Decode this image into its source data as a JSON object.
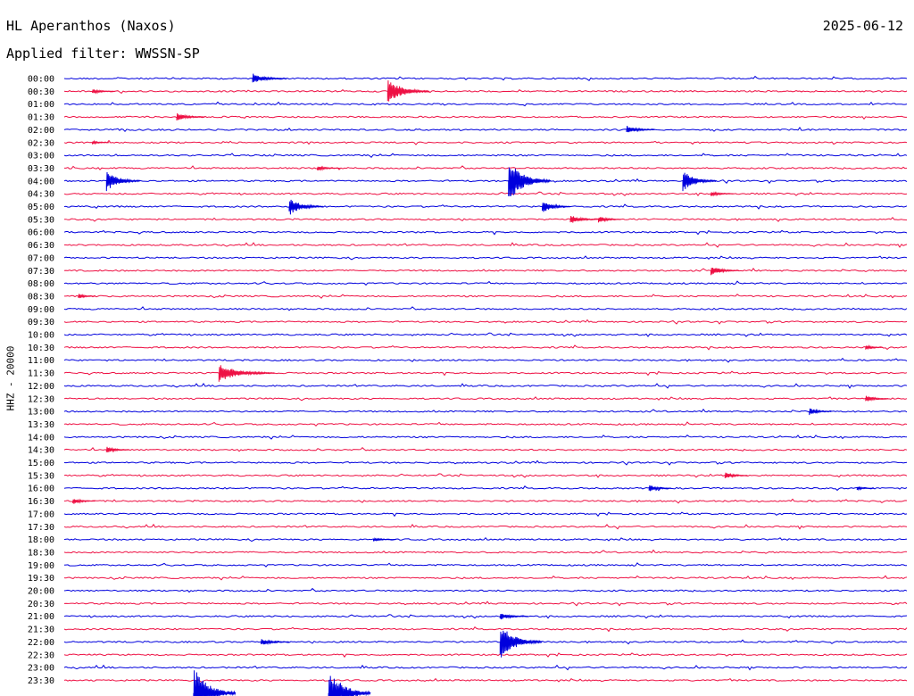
{
  "header": {
    "station": "HL Aperanthos (Naxos)",
    "date": "2025-06-12",
    "filter": "Applied filter: WWSSN-SP"
  },
  "chart_data": {
    "type": "helicorder",
    "ylabel": "HHZ - 20000",
    "colors": [
      "#0000dd",
      "#ee1144"
    ],
    "rows": [
      "00:00",
      "00:30",
      "01:00",
      "01:30",
      "02:00",
      "02:30",
      "03:00",
      "03:30",
      "04:00",
      "04:30",
      "05:00",
      "05:30",
      "06:00",
      "06:30",
      "07:00",
      "07:30",
      "08:00",
      "08:30",
      "09:00",
      "09:30",
      "10:00",
      "10:30",
      "11:00",
      "11:30",
      "12:00",
      "12:30",
      "13:00",
      "13:30",
      "14:00",
      "14:30",
      "15:00",
      "15:30",
      "16:00",
      "16:30",
      "17:00",
      "17:30",
      "18:00",
      "18:30",
      "19:00",
      "19:30",
      "20:00",
      "20:30",
      "21:00",
      "21:30",
      "22:00",
      "22:30",
      "23:00",
      "23:30"
    ],
    "minutes_per_row": 30,
    "events": [
      {
        "row": 0,
        "minute": 6.7,
        "amp": 6,
        "dur": 1.2
      },
      {
        "row": 1,
        "minute": 1.0,
        "amp": 3,
        "dur": 0.8
      },
      {
        "row": 1,
        "minute": 11.5,
        "amp": 14,
        "dur": 1.5
      },
      {
        "row": 3,
        "minute": 4.0,
        "amp": 5,
        "dur": 1.0
      },
      {
        "row": 4,
        "minute": 20.0,
        "amp": 5,
        "dur": 1.0
      },
      {
        "row": 5,
        "minute": 1.0,
        "amp": 2,
        "dur": 0.6
      },
      {
        "row": 7,
        "minute": 9.0,
        "amp": 3,
        "dur": 0.8
      },
      {
        "row": 8,
        "minute": 1.5,
        "amp": 12,
        "dur": 1.2
      },
      {
        "row": 8,
        "minute": 15.8,
        "amp": 24,
        "dur": 1.5
      },
      {
        "row": 8,
        "minute": 22.0,
        "amp": 12,
        "dur": 1.2
      },
      {
        "row": 9,
        "minute": 23.0,
        "amp": 3,
        "dur": 0.8
      },
      {
        "row": 10,
        "minute": 8.0,
        "amp": 10,
        "dur": 1.2
      },
      {
        "row": 10,
        "minute": 17.0,
        "amp": 8,
        "dur": 1.0
      },
      {
        "row": 11,
        "minute": 18.0,
        "amp": 5,
        "dur": 1.0
      },
      {
        "row": 11,
        "minute": 19.0,
        "amp": 4,
        "dur": 0.8
      },
      {
        "row": 15,
        "minute": 23.0,
        "amp": 6,
        "dur": 1.0
      },
      {
        "row": 17,
        "minute": 0.5,
        "amp": 3,
        "dur": 0.6
      },
      {
        "row": 21,
        "minute": 28.5,
        "amp": 3,
        "dur": 0.6
      },
      {
        "row": 23,
        "minute": 5.5,
        "amp": 10,
        "dur": 2.0
      },
      {
        "row": 25,
        "minute": 28.5,
        "amp": 4,
        "dur": 0.8
      },
      {
        "row": 26,
        "minute": 26.5,
        "amp": 4,
        "dur": 0.8
      },
      {
        "row": 29,
        "minute": 1.5,
        "amp": 4,
        "dur": 0.8
      },
      {
        "row": 31,
        "minute": 23.5,
        "amp": 4,
        "dur": 0.8
      },
      {
        "row": 32,
        "minute": 20.8,
        "amp": 4,
        "dur": 0.8
      },
      {
        "row": 32,
        "minute": 28.2,
        "amp": 2,
        "dur": 0.6
      },
      {
        "row": 33,
        "minute": 0.3,
        "amp": 4,
        "dur": 0.8
      },
      {
        "row": 36,
        "minute": 11.0,
        "amp": 2,
        "dur": 0.8
      },
      {
        "row": 42,
        "minute": 15.5,
        "amp": 4,
        "dur": 1.0
      },
      {
        "row": 44,
        "minute": 7.0,
        "amp": 4,
        "dur": 1.0
      },
      {
        "row": 44,
        "minute": 15.5,
        "amp": 20,
        "dur": 1.5
      },
      {
        "row": 48,
        "minute": 4.6,
        "amp": 30,
        "dur": 1.5
      },
      {
        "row": 48,
        "minute": 9.4,
        "amp": 30,
        "dur": 1.5
      }
    ]
  }
}
